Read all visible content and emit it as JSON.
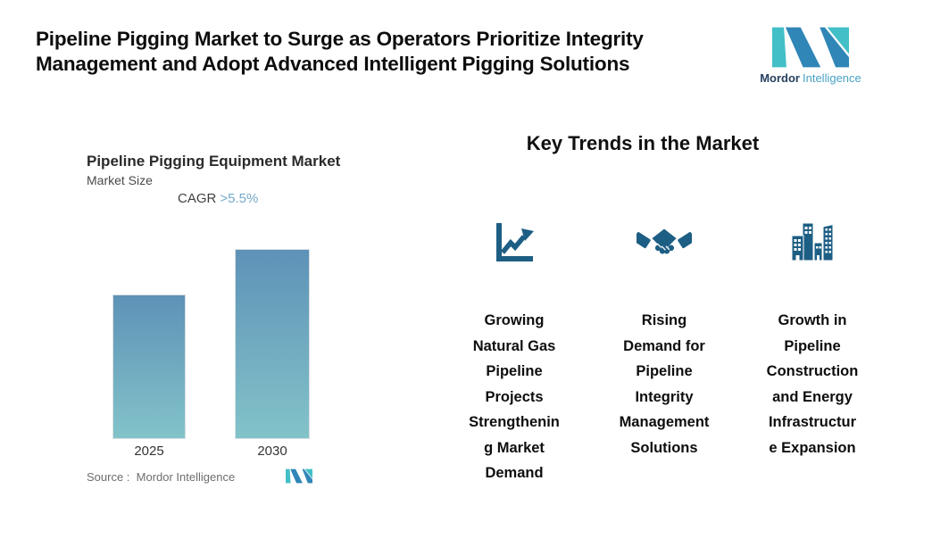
{
  "header": {
    "title": "Pipeline Pigging Market to Surge as Operators Prioritize Integrity\nManagement and Adopt Advanced Intelligent Pigging Solutions",
    "logo": {
      "brand_bold": "Mordor",
      "brand_light": "Intelligence",
      "mark_teal": "#43BFC7",
      "mark_blue": "#2F86B7",
      "text_dark": "#27415F",
      "text_light": "#4AA2C5"
    }
  },
  "chart": {
    "title": "Pipeline Pigging Equipment Market",
    "subtitle": "Market Size",
    "cagr_label": "CAGR",
    "cagr_value": ">5.5%",
    "cagr_color": "#74A9CB",
    "bar_top_color": "#5E92B7",
    "bar_bottom_color": "#82C3C9",
    "source": "Source :  Mordor Intelligence"
  },
  "chart_data": {
    "type": "bar",
    "categories": [
      "2025",
      "2030"
    ],
    "values": [
      162,
      213
    ],
    "values_note": "No numeric y-axis shown; values are relative bar heights in px (2030 is about 1.31x the 2025 bar, consistent with CAGR >5.5% over 2025-2030).",
    "title": "Pipeline Pigging Equipment Market",
    "xlabel": "",
    "ylabel": "Market Size",
    "annotations": [
      "CAGR >5.5%"
    ],
    "grid": false,
    "legend": false,
    "bar_gradient": [
      "#5E92B7",
      "#82C3C9"
    ]
  },
  "key_trends": {
    "heading": "Key Trends in the Market",
    "icon_color": "#1D5E84",
    "items": [
      {
        "icon": "trend-chart-icon",
        "text": "Growing\nNatural Gas\nPipeline\nProjects\nStrengthenin\ng Market\nDemand"
      },
      {
        "icon": "handshake-icon",
        "text": "Rising\nDemand for\nPipeline\nIntegrity\nManagement\nSolutions"
      },
      {
        "icon": "buildings-icon",
        "text": "Growth in\nPipeline\nConstruction\nand Energy\nInfrastructur\ne Expansion"
      }
    ]
  }
}
